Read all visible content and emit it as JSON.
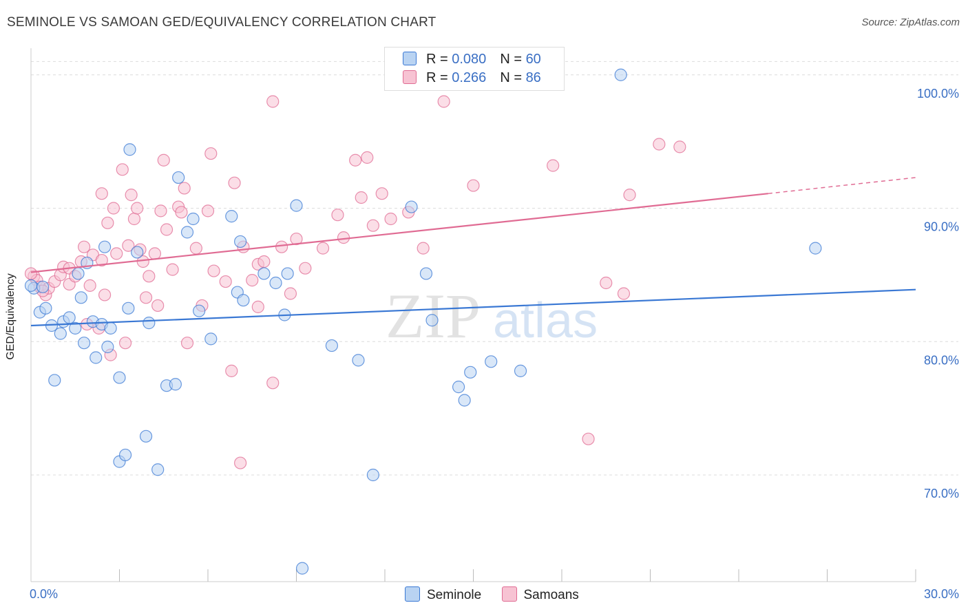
{
  "title": "SEMINOLE VS SAMOAN GED/EQUIVALENCY CORRELATION CHART",
  "source": "Source: ZipAtlas.com",
  "watermark": {
    "zip": "ZIP",
    "atlas": "atlas"
  },
  "legend_top": [
    {
      "r_label": "R = ",
      "r_value": "0.080",
      "n_label": "N = ",
      "n_value": "60",
      "color": "#a9c8ef"
    },
    {
      "r_label": "R = ",
      "r_value": "0.266",
      "n_label": "N = ",
      "n_value": "86",
      "color": "#f6b9cc"
    }
  ],
  "chart_data": {
    "type": "scatter",
    "title": "SEMINOLE VS SAMOAN GED/EQUIVALENCY CORRELATION CHART",
    "xlabel": "",
    "ylabel": "GED/Equivalency",
    "xlim": [
      0,
      30
    ],
    "ylim": [
      62,
      102
    ],
    "x_tick_labels": [
      "0.0%",
      "30.0%"
    ],
    "y_ticks": [
      70,
      80,
      90,
      100
    ],
    "y_tick_labels": [
      "70.0%",
      "80.0%",
      "90.0%",
      "100.0%"
    ],
    "grid": "horizontal dashed",
    "legend_position": "bottom",
    "series": [
      {
        "name": "Seminole",
        "color": "#3a78d4",
        "fill": "#b9d3f2",
        "trend": {
          "x": [
            0,
            30
          ],
          "y": [
            81.2,
            83.9
          ]
        },
        "points": [
          [
            0.1,
            84.0
          ],
          [
            0.3,
            82.2
          ],
          [
            0.4,
            84.1
          ],
          [
            0.5,
            82.5
          ],
          [
            0.7,
            81.2
          ],
          [
            0.8,
            77.1
          ],
          [
            1.0,
            80.6
          ],
          [
            1.1,
            81.5
          ],
          [
            1.3,
            81.8
          ],
          [
            1.5,
            81.0
          ],
          [
            1.6,
            85.1
          ],
          [
            1.7,
            83.3
          ],
          [
            1.8,
            79.9
          ],
          [
            1.9,
            85.9
          ],
          [
            2.1,
            81.5
          ],
          [
            2.2,
            78.8
          ],
          [
            2.4,
            81.3
          ],
          [
            2.5,
            87.1
          ],
          [
            2.6,
            79.6
          ],
          [
            2.7,
            81.0
          ],
          [
            3.0,
            71.0
          ],
          [
            3.0,
            77.3
          ],
          [
            3.2,
            71.5
          ],
          [
            3.3,
            82.5
          ],
          [
            3.35,
            94.4
          ],
          [
            3.6,
            86.7
          ],
          [
            3.9,
            72.9
          ],
          [
            4.0,
            81.4
          ],
          [
            4.3,
            70.4
          ],
          [
            4.6,
            76.7
          ],
          [
            4.9,
            76.8
          ],
          [
            5.0,
            92.3
          ],
          [
            5.3,
            88.2
          ],
          [
            5.5,
            89.2
          ],
          [
            5.7,
            82.3
          ],
          [
            6.1,
            80.2
          ],
          [
            6.8,
            89.4
          ],
          [
            7.0,
            83.7
          ],
          [
            7.1,
            87.5
          ],
          [
            7.2,
            83.1
          ],
          [
            7.9,
            85.1
          ],
          [
            8.3,
            84.4
          ],
          [
            8.6,
            82.0
          ],
          [
            8.7,
            85.1
          ],
          [
            9.0,
            90.2
          ],
          [
            9.2,
            63.0
          ],
          [
            10.2,
            79.7
          ],
          [
            11.1,
            78.6
          ],
          [
            11.6,
            70.0
          ],
          [
            12.9,
            90.1
          ],
          [
            13.4,
            85.1
          ],
          [
            13.6,
            81.6
          ],
          [
            14.5,
            76.6
          ],
          [
            14.7,
            75.6
          ],
          [
            14.9,
            77.7
          ],
          [
            15.6,
            78.5
          ],
          [
            16.6,
            77.8
          ],
          [
            20.0,
            100.0
          ],
          [
            26.6,
            87.0
          ],
          [
            0.0,
            84.2
          ]
        ]
      },
      {
        "name": "Samoans",
        "color": "#e06b93",
        "fill": "#f7c3d3",
        "trend": {
          "x": [
            0,
            25.0
          ],
          "y": [
            85.2,
            91.1
          ]
        },
        "trend_extension": {
          "x": [
            25.0,
            30
          ],
          "y": [
            91.1,
            92.3
          ]
        },
        "points": [
          [
            0.1,
            84.9
          ],
          [
            0.2,
            84.6
          ],
          [
            0.3,
            84.1
          ],
          [
            0.5,
            83.5
          ],
          [
            0.6,
            84.0
          ],
          [
            0.8,
            84.5
          ],
          [
            1.0,
            85.0
          ],
          [
            1.1,
            85.6
          ],
          [
            1.3,
            85.5
          ],
          [
            1.3,
            84.3
          ],
          [
            1.5,
            84.9
          ],
          [
            1.7,
            86.0
          ],
          [
            1.8,
            87.1
          ],
          [
            1.9,
            81.3
          ],
          [
            2.0,
            84.2
          ],
          [
            2.1,
            86.5
          ],
          [
            2.3,
            81.0
          ],
          [
            2.4,
            86.1
          ],
          [
            2.4,
            91.1
          ],
          [
            2.5,
            83.5
          ],
          [
            2.6,
            88.9
          ],
          [
            2.7,
            79.0
          ],
          [
            2.8,
            90.0
          ],
          [
            2.9,
            86.6
          ],
          [
            3.1,
            92.9
          ],
          [
            3.2,
            79.9
          ],
          [
            3.3,
            87.2
          ],
          [
            3.4,
            91.0
          ],
          [
            3.5,
            89.2
          ],
          [
            3.6,
            90.0
          ],
          [
            3.7,
            86.9
          ],
          [
            3.8,
            86.0
          ],
          [
            3.9,
            83.3
          ],
          [
            4.0,
            84.9
          ],
          [
            4.2,
            86.6
          ],
          [
            4.3,
            82.7
          ],
          [
            4.4,
            89.8
          ],
          [
            4.5,
            93.6
          ],
          [
            4.6,
            88.4
          ],
          [
            4.8,
            85.4
          ],
          [
            5.0,
            90.1
          ],
          [
            5.1,
            89.7
          ],
          [
            5.2,
            91.5
          ],
          [
            5.3,
            79.9
          ],
          [
            5.6,
            87.0
          ],
          [
            5.8,
            82.7
          ],
          [
            6.0,
            89.8
          ],
          [
            6.1,
            94.1
          ],
          [
            6.2,
            85.3
          ],
          [
            6.6,
            84.5
          ],
          [
            6.8,
            77.8
          ],
          [
            6.9,
            91.9
          ],
          [
            7.1,
            70.9
          ],
          [
            7.2,
            87.1
          ],
          [
            7.5,
            84.6
          ],
          [
            7.7,
            82.6
          ],
          [
            7.7,
            85.8
          ],
          [
            7.9,
            86.0
          ],
          [
            8.2,
            76.9
          ],
          [
            8.2,
            98.0
          ],
          [
            8.5,
            87.1
          ],
          [
            8.8,
            83.6
          ],
          [
            9.0,
            87.7
          ],
          [
            9.3,
            85.5
          ],
          [
            9.9,
            87.0
          ],
          [
            10.4,
            89.5
          ],
          [
            10.6,
            87.8
          ],
          [
            11.0,
            93.6
          ],
          [
            11.2,
            90.8
          ],
          [
            11.4,
            93.8
          ],
          [
            11.6,
            88.7
          ],
          [
            11.9,
            91.1
          ],
          [
            12.2,
            89.2
          ],
          [
            12.8,
            89.7
          ],
          [
            13.3,
            87.0
          ],
          [
            14.0,
            98.0
          ],
          [
            15.0,
            91.7
          ],
          [
            17.7,
            93.2
          ],
          [
            18.9,
            72.7
          ],
          [
            19.5,
            84.4
          ],
          [
            20.1,
            83.6
          ],
          [
            20.3,
            91.0
          ],
          [
            21.3,
            94.8
          ],
          [
            22.0,
            94.6
          ],
          [
            0.0,
            85.1
          ],
          [
            0.4,
            83.8
          ]
        ]
      }
    ]
  }
}
